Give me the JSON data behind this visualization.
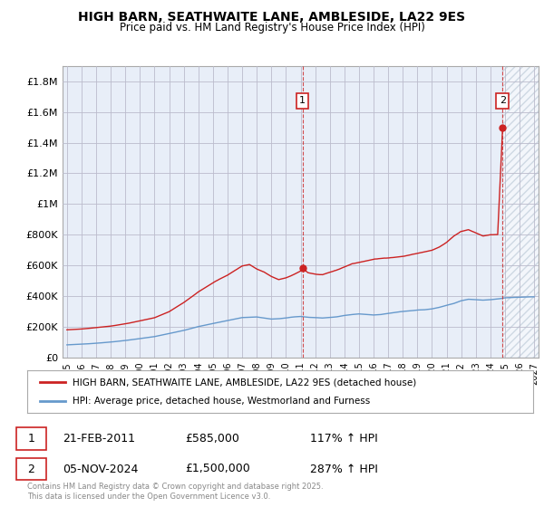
{
  "title": "HIGH BARN, SEATHWAITE LANE, AMBLESIDE, LA22 9ES",
  "subtitle": "Price paid vs. HM Land Registry's House Price Index (HPI)",
  "legend_line1": "HIGH BARN, SEATHWAITE LANE, AMBLESIDE, LA22 9ES (detached house)",
  "legend_line2": "HPI: Average price, detached house, Westmorland and Furness",
  "annotation1_num": "1",
  "annotation1_date": "21-FEB-2011",
  "annotation1_price": "£585,000",
  "annotation1_hpi": "117% ↑ HPI",
  "annotation2_num": "2",
  "annotation2_date": "05-NOV-2024",
  "annotation2_price": "£1,500,000",
  "annotation2_hpi": "287% ↑ HPI",
  "copyright": "Contains HM Land Registry data © Crown copyright and database right 2025.\nThis data is licensed under the Open Government Licence v3.0.",
  "red_color": "#cc2222",
  "blue_color": "#6699cc",
  "grid_color": "#bbbbcc",
  "bg_fill_color": "#e8eef8",
  "background_color": "#ffffff",
  "ylim": [
    0,
    1900000
  ],
  "xlim_start": 1994.7,
  "xlim_end": 2027.3,
  "marker1_x": 2011.13,
  "marker1_y": 585000,
  "marker2_x": 2024.84,
  "marker2_y": 1500000,
  "xticks": [
    1995,
    1996,
    1997,
    1998,
    1999,
    2000,
    2001,
    2002,
    2003,
    2004,
    2005,
    2006,
    2007,
    2008,
    2009,
    2010,
    2011,
    2012,
    2013,
    2014,
    2015,
    2016,
    2017,
    2018,
    2019,
    2020,
    2021,
    2022,
    2023,
    2024,
    2025,
    2026,
    2027
  ],
  "yticks": [
    0,
    200000,
    400000,
    600000,
    800000,
    1000000,
    1200000,
    1400000,
    1600000,
    1800000
  ],
  "ytick_labels": [
    "£0",
    "£200K",
    "£400K",
    "£600K",
    "£800K",
    "£1M",
    "£1.2M",
    "£1.4M",
    "£1.6M",
    "£1.8M"
  ]
}
